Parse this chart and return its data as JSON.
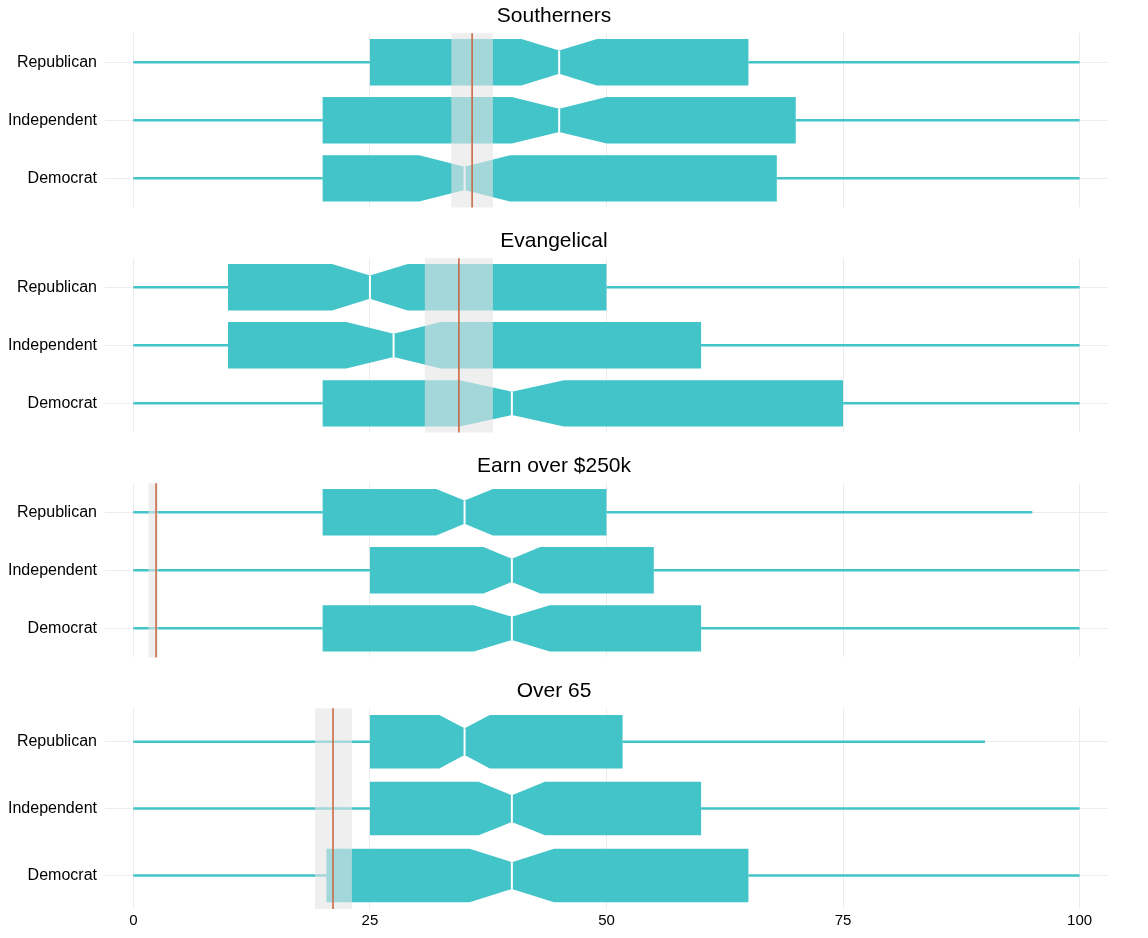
{
  "chart_data": [
    {
      "type": "box",
      "title": "Southerners",
      "orientation": "horizontal",
      "color": "#43c4c8",
      "categories": [
        "Republican",
        "Independent",
        "Democrat"
      ],
      "boxes": [
        {
          "low": 0,
          "q1": 25,
          "median": 45,
          "q3": 65,
          "high": 100
        },
        {
          "low": 0,
          "q1": 20,
          "median": 45,
          "q3": 70,
          "high": 100
        },
        {
          "low": 0,
          "q1": 20,
          "median": 35,
          "q3": 68,
          "high": 100
        }
      ],
      "xlim": [
        -3,
        103
      ],
      "xticks": [
        0,
        25,
        50,
        75,
        100
      ],
      "tick_labels": "y",
      "grid": true,
      "ref_lines": [
        {
          "axis": "x",
          "value": 35.8,
          "color": "#c8633a"
        }
      ],
      "bands": [
        {
          "axis": "x",
          "from": 33.6,
          "to": 38,
          "color": "#e4e4e4"
        }
      ]
    },
    {
      "type": "box",
      "title": "Evangelical",
      "orientation": "horizontal",
      "color": "#43c4c8",
      "categories": [
        "Republican",
        "Independent",
        "Democrat"
      ],
      "boxes": [
        {
          "low": 0,
          "q1": 10,
          "median": 25,
          "q3": 50,
          "high": 100
        },
        {
          "low": 0,
          "q1": 10,
          "median": 27.5,
          "q3": 60,
          "high": 100
        },
        {
          "low": 0,
          "q1": 20,
          "median": 40,
          "q3": 75,
          "high": 100
        }
      ],
      "xlim": [
        -3,
        103
      ],
      "xticks": [
        0,
        25,
        50,
        75,
        100
      ],
      "tick_labels": "y",
      "grid": true,
      "ref_lines": [
        {
          "axis": "x",
          "value": 34.4,
          "color": "#c8633a"
        }
      ],
      "bands": [
        {
          "axis": "x",
          "from": 30.8,
          "to": 38,
          "color": "#e4e4e4"
        }
      ]
    },
    {
      "type": "box",
      "title": "Earn over $250k",
      "orientation": "horizontal",
      "color": "#43c4c8",
      "categories": [
        "Republican",
        "Independent",
        "Democrat"
      ],
      "boxes": [
        {
          "low": 0,
          "q1": 20,
          "median": 35,
          "q3": 50,
          "high": 95
        },
        {
          "low": 0,
          "q1": 25,
          "median": 40,
          "q3": 55,
          "high": 100
        },
        {
          "low": 0,
          "q1": 20,
          "median": 40,
          "q3": 60,
          "high": 100
        }
      ],
      "xlim": [
        -3,
        103
      ],
      "xticks": [
        0,
        25,
        50,
        75,
        100
      ],
      "tick_labels": "y",
      "grid": true,
      "ref_lines": [
        {
          "axis": "x",
          "value": 2.4,
          "color": "#c8633a"
        }
      ],
      "bands": [
        {
          "axis": "x",
          "from": 1.6,
          "to": 2.6,
          "color": "#e4e4e4"
        }
      ]
    },
    {
      "type": "box",
      "title": "Over 65",
      "orientation": "horizontal",
      "color": "#43c4c8",
      "categories": [
        "Republican",
        "Independent",
        "Democrat"
      ],
      "boxes": [
        {
          "low": 0,
          "q1": 25,
          "median": 35,
          "q3": 51.7,
          "high": 90
        },
        {
          "low": 0,
          "q1": 25,
          "median": 40,
          "q3": 60,
          "high": 100
        },
        {
          "low": 0,
          "q1": 20.4,
          "median": 40,
          "q3": 65,
          "high": 100
        }
      ],
      "xlim": [
        -3,
        103
      ],
      "xticks": [
        0,
        25,
        50,
        75,
        100
      ],
      "grid": true,
      "ref_lines": [
        {
          "axis": "x",
          "value": 21.1,
          "color": "#c8633a"
        }
      ],
      "bands": [
        {
          "axis": "x",
          "from": 19.2,
          "to": 23.1,
          "color": "#e4e4e4"
        }
      ]
    }
  ]
}
